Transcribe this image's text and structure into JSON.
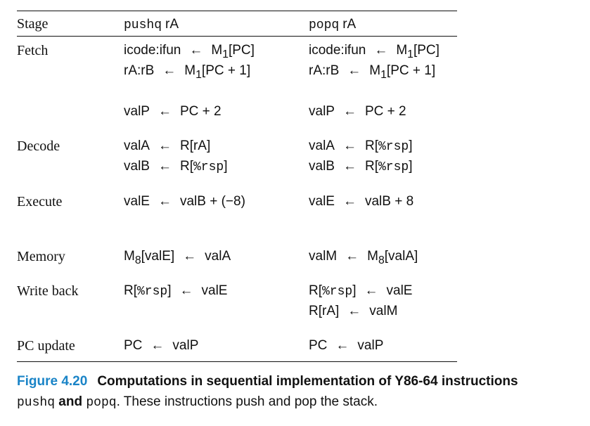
{
  "headers": {
    "stage": "Stage",
    "push": "pushq rA",
    "pop": "popq rA"
  },
  "rows": {
    "fetch": {
      "stage": "Fetch",
      "push": [
        "icode:ifun ← M1[PC]",
        "rA:rB ← M1[PC + 1]",
        "valP ← PC + 2"
      ],
      "pop": [
        "icode:ifun ← M1[PC]",
        "rA:rB ← M1[PC + 1]",
        "valP ← PC + 2"
      ]
    },
    "decode": {
      "stage": "Decode",
      "push": [
        "valA ← R[rA]",
        "valB ← R[%rsp]"
      ],
      "pop": [
        "valA ← R[%rsp]",
        "valB ← R[%rsp]"
      ]
    },
    "execute": {
      "stage": "Execute",
      "push": [
        "valE ← valB + (−8)"
      ],
      "pop": [
        "valE ← valB + 8"
      ]
    },
    "memory": {
      "stage": "Memory",
      "push": [
        "M8[valE] ← valA"
      ],
      "pop": [
        "valM ← M8[valA]"
      ]
    },
    "writeback": {
      "stage": "Write back",
      "push": [
        "R[%rsp] ← valE"
      ],
      "pop": [
        "R[%rsp] ← valE",
        "R[rA] ← valM"
      ]
    },
    "pcupdate": {
      "stage": "PC update",
      "push": [
        "PC ← valP"
      ],
      "pop": [
        "PC ← valP"
      ]
    }
  },
  "caption": {
    "figure_number": "Figure 4.20",
    "title_part1": "Computations in sequential implementation of Y86-64 instructions",
    "code1": "pushq",
    "and_word": "and",
    "code2": "popq",
    "text": ". These instructions push and pop the stack."
  }
}
